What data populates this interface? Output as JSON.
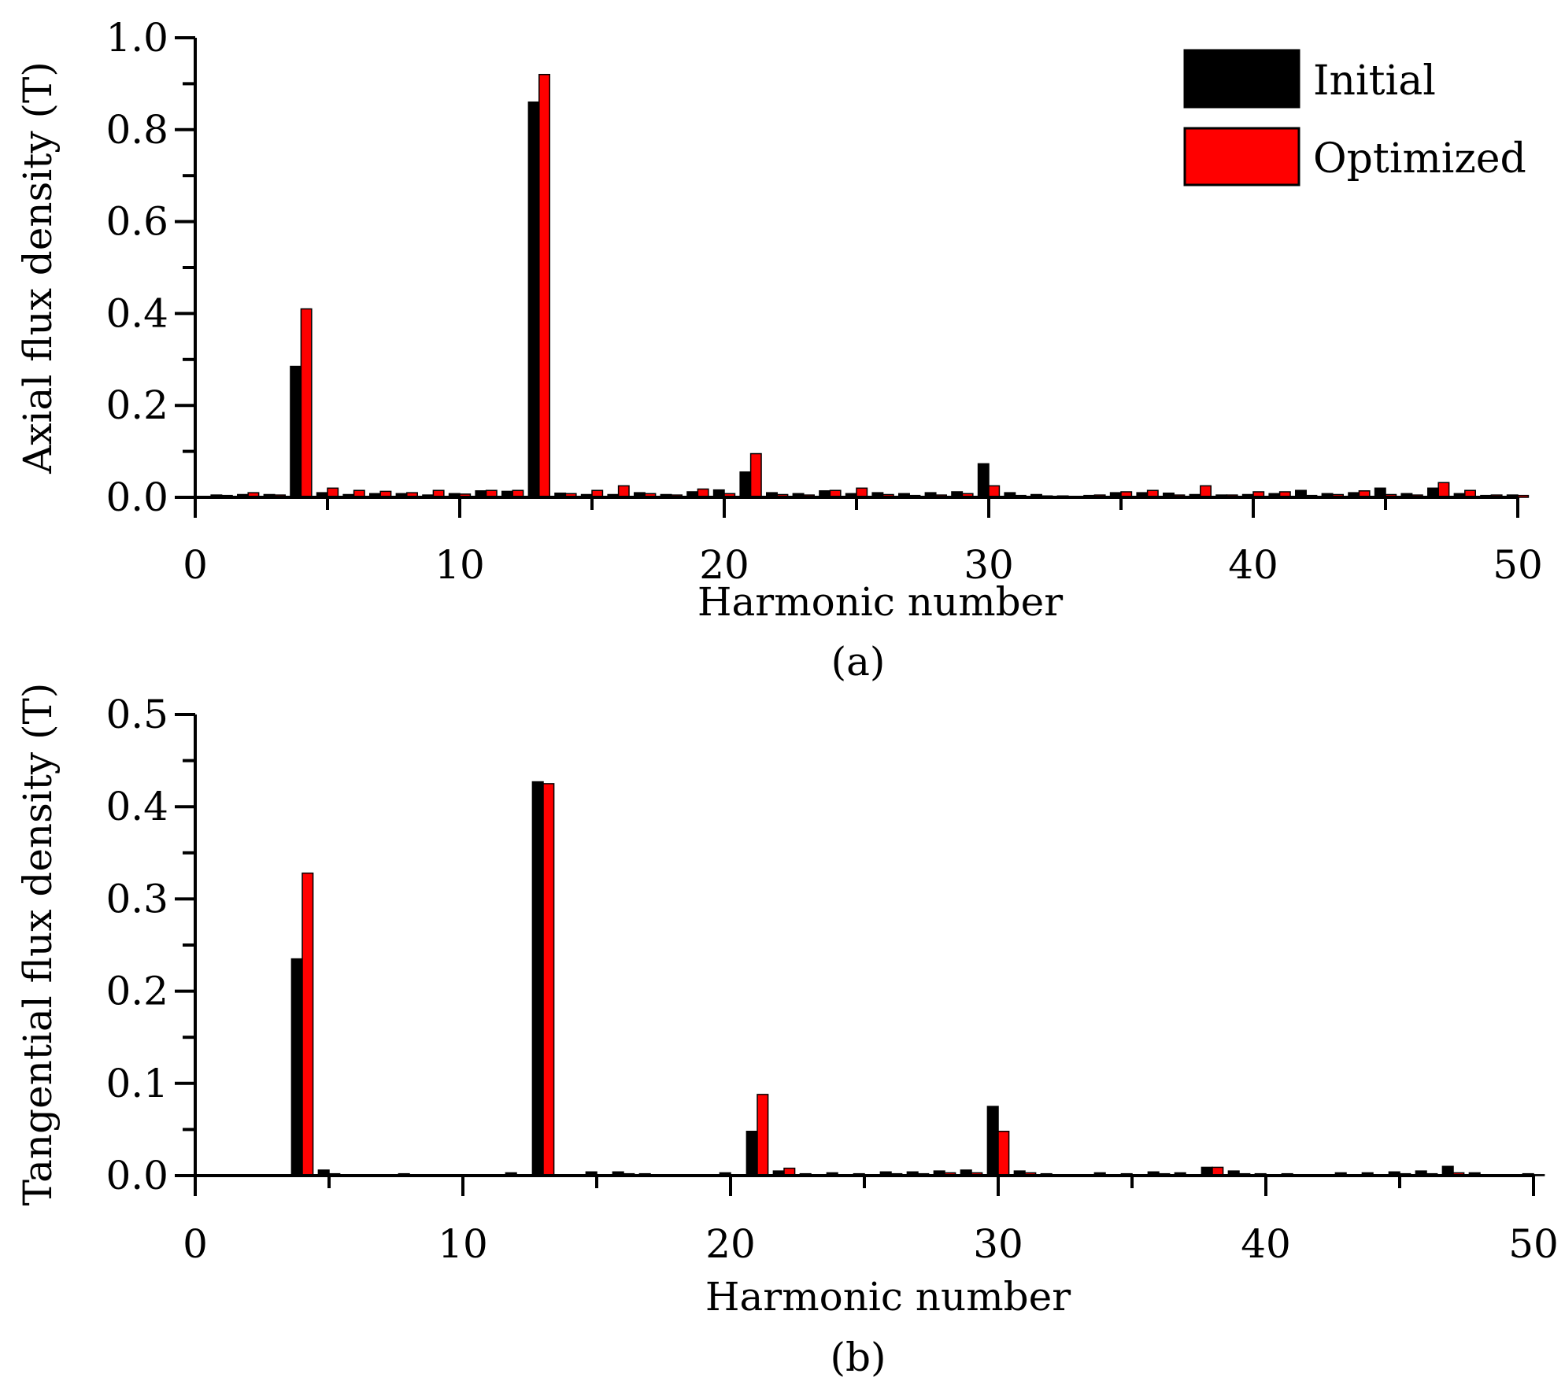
{
  "chart_data": [
    {
      "type": "bar",
      "caption": "(a)",
      "xlabel": "Harmonic number",
      "ylabel": "Axial flux density (T)",
      "xlim": [
        0,
        50
      ],
      "ylim": [
        0,
        1.0
      ],
      "x_ticks": [
        "0",
        "10",
        "20",
        "30",
        "40",
        "50"
      ],
      "y_ticks": [
        "0.0",
        "0.2",
        "0.4",
        "0.6",
        "0.8",
        "1.0"
      ],
      "legend": {
        "position": "top-right",
        "entries": [
          "Initial",
          "Optimized"
        ]
      },
      "colors": {
        "Initial": "#000000",
        "Optimized": "#ff0000"
      },
      "categories": [
        1,
        2,
        3,
        4,
        5,
        6,
        7,
        8,
        9,
        10,
        11,
        12,
        13,
        14,
        15,
        16,
        17,
        18,
        19,
        20,
        21,
        22,
        23,
        24,
        25,
        26,
        27,
        28,
        29,
        30,
        31,
        32,
        33,
        34,
        35,
        36,
        37,
        38,
        39,
        40,
        41,
        42,
        43,
        44,
        45,
        46,
        47,
        48,
        49,
        50
      ],
      "series": [
        {
          "name": "Initial",
          "values": [
            0.005,
            0.006,
            0.006,
            0.285,
            0.01,
            0.006,
            0.008,
            0.008,
            0.005,
            0.008,
            0.014,
            0.013,
            0.86,
            0.009,
            0.006,
            0.006,
            0.01,
            0.006,
            0.012,
            0.016,
            0.055,
            0.01,
            0.008,
            0.014,
            0.008,
            0.01,
            0.008,
            0.01,
            0.012,
            0.073,
            0.01,
            0.006,
            0.003,
            0.004,
            0.01,
            0.01,
            0.009,
            0.006,
            0.005,
            0.006,
            0.008,
            0.015,
            0.008,
            0.01,
            0.02,
            0.008,
            0.02,
            0.008,
            0.004,
            0.005
          ]
        },
        {
          "name": "Optimized",
          "values": [
            0.004,
            0.01,
            0.005,
            0.41,
            0.02,
            0.015,
            0.013,
            0.01,
            0.015,
            0.007,
            0.015,
            0.015,
            0.92,
            0.008,
            0.015,
            0.025,
            0.008,
            0.005,
            0.018,
            0.008,
            0.095,
            0.006,
            0.005,
            0.015,
            0.02,
            0.006,
            0.004,
            0.005,
            0.008,
            0.025,
            0.004,
            0.003,
            0.002,
            0.005,
            0.012,
            0.015,
            0.005,
            0.025,
            0.005,
            0.012,
            0.012,
            0.004,
            0.006,
            0.014,
            0.006,
            0.005,
            0.032,
            0.015,
            0.005,
            0.004
          ]
        }
      ]
    },
    {
      "type": "bar",
      "caption": "(b)",
      "xlabel": "Harmonic number",
      "ylabel": "Tangential flux density (T)",
      "xlim": [
        0,
        50
      ],
      "ylim": [
        0,
        0.5
      ],
      "x_ticks": [
        "0",
        "10",
        "20",
        "30",
        "40",
        "50"
      ],
      "y_ticks": [
        "0.0",
        "0.1",
        "0.2",
        "0.3",
        "0.4",
        "0.5"
      ],
      "colors": {
        "Initial": "#000000",
        "Optimized": "#ff0000"
      },
      "categories": [
        1,
        2,
        3,
        4,
        5,
        6,
        7,
        8,
        9,
        10,
        11,
        12,
        13,
        14,
        15,
        16,
        17,
        18,
        19,
        20,
        21,
        22,
        23,
        24,
        25,
        26,
        27,
        28,
        29,
        30,
        31,
        32,
        33,
        34,
        35,
        36,
        37,
        38,
        39,
        40,
        41,
        42,
        43,
        44,
        45,
        46,
        47,
        48,
        49,
        50
      ],
      "series": [
        {
          "name": "Initial",
          "values": [
            0.001,
            0.001,
            0.001,
            0.235,
            0.006,
            0.001,
            0.001,
            0.002,
            0.001,
            0.001,
            0.001,
            0.003,
            0.427,
            0.001,
            0.004,
            0.004,
            0.002,
            0.001,
            0.001,
            0.003,
            0.048,
            0.005,
            0.002,
            0.003,
            0.002,
            0.004,
            0.004,
            0.005,
            0.006,
            0.075,
            0.005,
            0.002,
            0.001,
            0.003,
            0.002,
            0.004,
            0.003,
            0.009,
            0.005,
            0.002,
            0.002,
            0.001,
            0.003,
            0.003,
            0.004,
            0.005,
            0.01,
            0.003,
            0.001,
            0.002
          ]
        },
        {
          "name": "Optimized",
          "values": [
            0.0,
            0.0,
            0.0,
            0.328,
            0.002,
            0.0,
            0.0,
            0.001,
            0.0,
            0.0,
            0.0,
            0.001,
            0.425,
            0.0,
            0.001,
            0.002,
            0.001,
            0.0,
            0.0,
            0.001,
            0.088,
            0.008,
            0.001,
            0.001,
            0.001,
            0.002,
            0.002,
            0.003,
            0.003,
            0.048,
            0.003,
            0.001,
            0.0,
            0.001,
            0.001,
            0.002,
            0.001,
            0.009,
            0.002,
            0.001,
            0.001,
            0.0,
            0.001,
            0.001,
            0.002,
            0.002,
            0.003,
            0.001,
            0.0,
            0.001
          ]
        }
      ]
    }
  ]
}
